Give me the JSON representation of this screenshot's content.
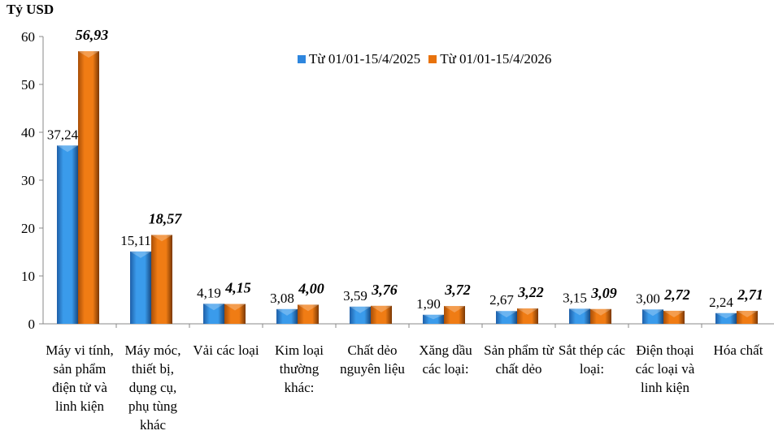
{
  "chart_data": {
    "type": "bar",
    "ylabel": "Tỷ USD",
    "ylim": [
      0,
      60
    ],
    "yticks": [
      0,
      10,
      20,
      30,
      40,
      50,
      60
    ],
    "grid": false,
    "legend_position": "top-right",
    "categories": [
      "Máy vi tính, sản phẩm điện tử và linh kiện",
      "Máy móc, thiết bị, dụng cụ, phụ tùng khác",
      "Vải các loại",
      "Kim loại thường khác:",
      "Chất dẻo nguyên liệu",
      "Xăng dầu các loại:",
      "Sản phẩm từ chất dẻo",
      "Sắt thép các loại:",
      "Điện thoại các loại và linh kiện",
      "Hóa chất"
    ],
    "series": [
      {
        "name": "Từ 01/01-15/4/2025",
        "color": "#2E86DE",
        "values": [
          37.24,
          15.11,
          4.19,
          3.08,
          3.59,
          1.9,
          2.67,
          3.15,
          3.0,
          2.24
        ],
        "labels": [
          "37,24",
          "15,11",
          "4,19",
          "3,08",
          "3,59",
          "1,90",
          "2,67",
          "3,15",
          "3,00",
          "2,24"
        ]
      },
      {
        "name": "Từ 01/01-15/4/2026",
        "color": "#E8720C",
        "values": [
          56.93,
          18.57,
          4.15,
          4.0,
          3.76,
          3.72,
          3.22,
          3.09,
          2.72,
          2.71
        ],
        "labels": [
          "56,93",
          "18,57",
          "4,15",
          "4,00",
          "3,76",
          "3,72",
          "3,22",
          "3,09",
          "2,72",
          "2,71"
        ]
      }
    ]
  }
}
